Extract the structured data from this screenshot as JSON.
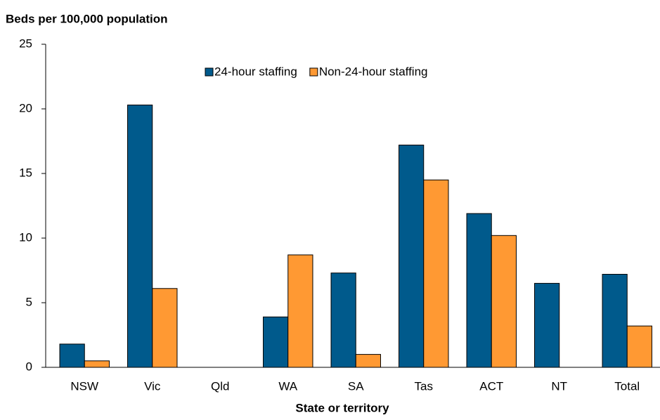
{
  "chart_data": {
    "type": "bar",
    "y_axis_label": "Beds per 100,000 population",
    "x_axis_label": "State or territory",
    "categories": [
      "NSW",
      "Vic",
      "Qld",
      "WA",
      "SA",
      "Tas",
      "ACT",
      "NT",
      "Total"
    ],
    "series": [
      {
        "name": "24-hour staffing",
        "color": "#005a8c",
        "values": [
          1.8,
          20.3,
          null,
          3.9,
          7.3,
          17.2,
          11.9,
          6.5,
          7.2
        ]
      },
      {
        "name": "Non-24-hour staffing",
        "color": "#ff9933",
        "values": [
          0.5,
          6.1,
          null,
          8.7,
          1.0,
          14.5,
          10.2,
          null,
          3.2
        ]
      }
    ],
    "ylim": [
      0,
      25
    ],
    "yticks": [
      0,
      5,
      10,
      15,
      20,
      25
    ],
    "grid": false,
    "legend": "top"
  }
}
